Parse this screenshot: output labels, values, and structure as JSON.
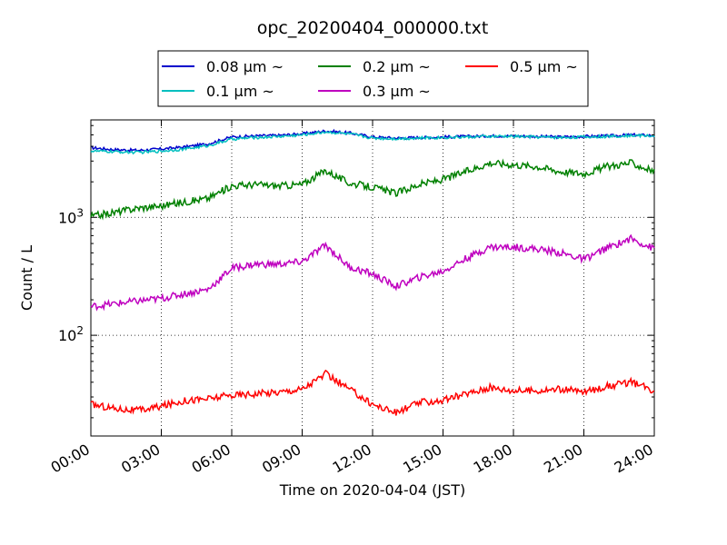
{
  "chart_data": {
    "type": "line",
    "title": "opc_20200404_000000.txt",
    "xlabel": "Time on 2020-04-04 (JST)",
    "ylabel": "Count / L",
    "yscale": "log",
    "grid": true,
    "legend_placement": "top-center",
    "xlim": [
      "00:00",
      "24:00"
    ],
    "ylim": [
      14,
      6700
    ],
    "x_ticks": [
      "00:00",
      "03:00",
      "06:00",
      "09:00",
      "12:00",
      "15:00",
      "18:00",
      "21:00",
      "24:00"
    ],
    "y_ticks": [
      {
        "base": "10",
        "exp": "2",
        "value": 100
      },
      {
        "base": "10",
        "exp": "3",
        "value": 1000
      }
    ],
    "x_hours": [
      0,
      1,
      2,
      3,
      4,
      5,
      6,
      7,
      8,
      9,
      10,
      11,
      12,
      13,
      14,
      15,
      16,
      17,
      18,
      19,
      20,
      21,
      22,
      23,
      24
    ],
    "series": [
      {
        "name": "0.08 µm ~",
        "color": "#0000cc",
        "values": [
          3900,
          3750,
          3700,
          3800,
          3950,
          4200,
          4800,
          4900,
          4950,
          5100,
          5400,
          5200,
          4800,
          4700,
          4750,
          4800,
          4850,
          4900,
          4900,
          4850,
          4800,
          4850,
          4900,
          5000,
          4950
        ]
      },
      {
        "name": "0.1 µm ~",
        "color": "#00bfbf",
        "values": [
          3650,
          3600,
          3550,
          3650,
          3800,
          4050,
          4600,
          4750,
          4850,
          5000,
          5300,
          5100,
          4700,
          4650,
          4700,
          4750,
          4800,
          4850,
          4850,
          4800,
          4750,
          4800,
          4850,
          4950,
          4900
        ]
      },
      {
        "name": "0.2 µm ~",
        "color": "#008000",
        "values": [
          1020,
          1100,
          1200,
          1250,
          1350,
          1450,
          1850,
          1900,
          1850,
          1900,
          2500,
          1950,
          1800,
          1600,
          1900,
          2100,
          2450,
          2900,
          2800,
          2700,
          2450,
          2350,
          2700,
          2900,
          2450
        ]
      },
      {
        "name": "0.3 µm ~",
        "color": "#bf00bf",
        "values": [
          175,
          185,
          195,
          205,
          225,
          245,
          370,
          400,
          400,
          420,
          580,
          380,
          330,
          260,
          310,
          350,
          450,
          560,
          560,
          540,
          500,
          440,
          550,
          660,
          540
        ]
      },
      {
        "name": "0.5 µm ~",
        "color": "#ff0000",
        "values": [
          26,
          24,
          23,
          25,
          28,
          29,
          31,
          32,
          33,
          35,
          47,
          35,
          26,
          22,
          27,
          28,
          32,
          36,
          34,
          34,
          35,
          33,
          37,
          40,
          34
        ]
      }
    ]
  }
}
